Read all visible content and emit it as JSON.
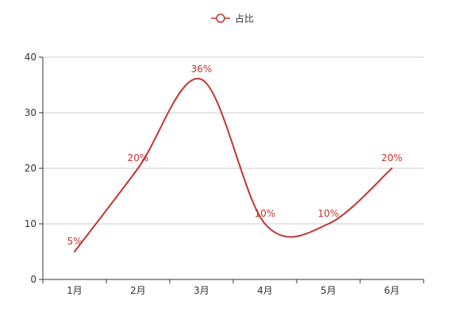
{
  "chart_data": {
    "type": "line",
    "categories": [
      "1月",
      "2月",
      "3月",
      "4月",
      "5月",
      "6月"
    ],
    "series": [
      {
        "name": "占比",
        "values": [
          5,
          20,
          36,
          10,
          10,
          20
        ],
        "labels": [
          "5%",
          "20%",
          "36%",
          "10%",
          "10%",
          "20%"
        ]
      }
    ],
    "ylim": [
      0,
      40
    ],
    "yticks": [
      "0",
      "10",
      "20",
      "30",
      "40"
    ],
    "grid": true,
    "smooth": true,
    "legend_position": "top-center",
    "colors": {
      "series": "#c23531",
      "axis": "#333333",
      "grid": "#cccccc",
      "tick_text": "#333333"
    }
  }
}
